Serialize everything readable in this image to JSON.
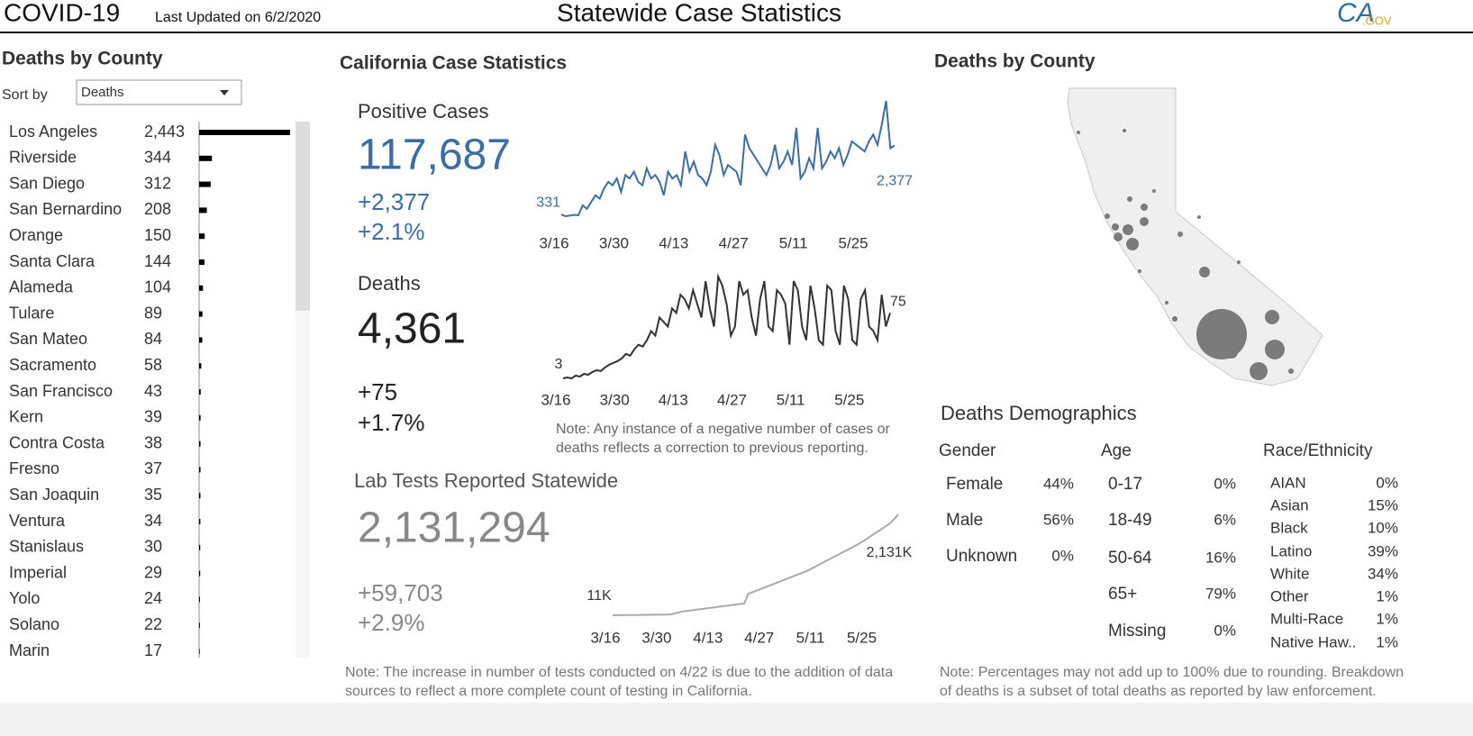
{
  "header": {
    "title": "COVID-19",
    "updated": "Last Updated on 6/2/2020",
    "page_title": "Statewide Case Statistics",
    "logo_a": "CA",
    "logo_b": ".GOV"
  },
  "county_panel": {
    "title": "Deaths by County",
    "sort_label": "Sort by",
    "sort_value": "Deaths",
    "chart_data": {
      "type": "bar",
      "categories": [
        "Los Angeles",
        "Riverside",
        "San Diego",
        "San Bernardino",
        "Orange",
        "Santa Clara",
        "Alameda",
        "Tulare",
        "San Mateo",
        "Sacramento",
        "San Francisco",
        "Kern",
        "Contra Costa",
        "Fresno",
        "San Joaquin",
        "Ventura",
        "Stanislaus",
        "Imperial",
        "Yolo",
        "Solano",
        "Marin"
      ],
      "values": [
        2443,
        344,
        312,
        208,
        150,
        144,
        104,
        89,
        84,
        58,
        43,
        39,
        38,
        37,
        35,
        34,
        30,
        29,
        24,
        22,
        17
      ],
      "value_labels": [
        "2,443",
        "344",
        "312",
        "208",
        "150",
        "144",
        "104",
        "89",
        "84",
        "58",
        "43",
        "39",
        "38",
        "37",
        "35",
        "34",
        "30",
        "29",
        "24",
        "22",
        "17"
      ],
      "color": "#000000"
    }
  },
  "stats": {
    "title": "California Case Statistics",
    "cases": {
      "label": "Positive Cases",
      "total": "117,687",
      "change": "+2,377",
      "pct": "+2.1%",
      "chart_data": {
        "type": "line",
        "color": "#3a6ea5",
        "categories": [
          "3/16",
          null,
          null,
          null,
          null,
          null,
          null,
          null,
          null,
          null,
          null,
          null,
          null,
          null,
          "3/30",
          null,
          null,
          null,
          null,
          null,
          null,
          null,
          null,
          null,
          null,
          null,
          null,
          null,
          "4/13",
          null,
          null,
          null,
          null,
          null,
          null,
          null,
          null,
          null,
          null,
          null,
          null,
          null,
          "4/27",
          null,
          null,
          null,
          null,
          null,
          null,
          null,
          null,
          null,
          null,
          null,
          null,
          null,
          "5/11",
          null,
          null,
          null,
          null,
          null,
          null,
          null,
          null,
          null,
          null,
          null,
          null,
          null,
          "5/25",
          null,
          null,
          null,
          null,
          null,
          null,
          null,
          null
        ],
        "values": [
          331,
          280,
          300,
          320,
          310,
          600,
          500,
          700,
          900,
          800,
          1100,
          1300,
          1200,
          1400,
          1000,
          1500,
          1400,
          1600,
          1300,
          1200,
          1700,
          1400,
          1500,
          1300,
          900,
          1600,
          1400,
          1500,
          1200,
          2200,
          1600,
          1900,
          1500,
          1400,
          1200,
          1600,
          2400,
          2100,
          1500,
          1800,
          1700,
          1600,
          1200,
          2700,
          2300,
          2100,
          1900,
          1700,
          1500,
          1800,
          2400,
          1700,
          1900,
          2200,
          1800,
          2900,
          1400,
          1600,
          2000,
          1700,
          2900,
          1700,
          1900,
          2200,
          2000,
          2300,
          1800,
          2100,
          2500,
          2400,
          2300,
          2200,
          2500,
          2700,
          2400,
          3000,
          3700,
          2300,
          2377
        ],
        "value_labels": [
          "331",
          null,
          null,
          null,
          null,
          null,
          null,
          null,
          null,
          null,
          null,
          null,
          null,
          null,
          null,
          null,
          null,
          null,
          null,
          null,
          null,
          null,
          null,
          null,
          null,
          null,
          null,
          null,
          null,
          null,
          null,
          null,
          null,
          null,
          null,
          null,
          null,
          null,
          null,
          null,
          null,
          null,
          null,
          null,
          null,
          null,
          null,
          null,
          null,
          null,
          null,
          null,
          null,
          null,
          null,
          null,
          null,
          null,
          null,
          null,
          null,
          null,
          null,
          null,
          null,
          null,
          null,
          null,
          null,
          null,
          null,
          null,
          null,
          null,
          null,
          null,
          null,
          null,
          "2,377"
        ]
      }
    },
    "deaths": {
      "label": "Deaths",
      "total": "4,361",
      "change": "+75",
      "pct": "+1.7%",
      "chart_data": {
        "type": "line",
        "color": "#333333",
        "categories": [
          "3/16",
          null,
          null,
          null,
          null,
          null,
          null,
          null,
          null,
          null,
          null,
          null,
          null,
          null,
          "3/30",
          null,
          null,
          null,
          null,
          null,
          null,
          null,
          null,
          null,
          null,
          null,
          null,
          null,
          "4/13",
          null,
          null,
          null,
          null,
          null,
          null,
          null,
          null,
          null,
          null,
          null,
          null,
          null,
          "4/27",
          null,
          null,
          null,
          null,
          null,
          null,
          null,
          null,
          null,
          null,
          null,
          null,
          null,
          "5/11",
          null,
          null,
          null,
          null,
          null,
          null,
          null,
          null,
          null,
          null,
          null,
          null,
          null,
          "5/25",
          null,
          null,
          null,
          null,
          null,
          null,
          null,
          null
        ],
        "values": [
          3,
          4,
          3,
          6,
          5,
          8,
          7,
          10,
          12,
          11,
          15,
          18,
          20,
          22,
          25,
          30,
          28,
          35,
          40,
          38,
          45,
          55,
          50,
          70,
          65,
          60,
          80,
          75,
          95,
          90,
          80,
          100,
          85,
          70,
          110,
          80,
          60,
          115,
          105,
          85,
          50,
          60,
          110,
          95,
          100,
          70,
          50,
          90,
          110,
          60,
          55,
          100,
          95,
          85,
          40,
          110,
          100,
          60,
          45,
          105,
          80,
          45,
          40,
          105,
          100,
          55,
          40,
          105,
          90,
          45,
          40,
          90,
          100,
          60,
          55,
          45,
          95,
          60,
          75
        ],
        "value_labels": [
          "3",
          null,
          null,
          null,
          null,
          null,
          null,
          null,
          null,
          null,
          null,
          null,
          null,
          null,
          null,
          null,
          null,
          null,
          null,
          null,
          null,
          null,
          null,
          null,
          null,
          null,
          null,
          null,
          null,
          null,
          null,
          null,
          null,
          null,
          null,
          null,
          null,
          null,
          null,
          null,
          null,
          null,
          null,
          null,
          null,
          null,
          null,
          null,
          null,
          null,
          null,
          null,
          null,
          null,
          null,
          null,
          null,
          null,
          null,
          null,
          null,
          null,
          null,
          null,
          null,
          null,
          null,
          null,
          null,
          null,
          null,
          null,
          null,
          null,
          null,
          null,
          null,
          null,
          "75"
        ]
      }
    },
    "note": "Note: Any instance of a negative number of cases or deaths reflects a correction to previous reporting.",
    "tests": {
      "label": "Lab Tests Reported Statewide",
      "total": "2,131,294",
      "change": "+59,703",
      "pct": "+2.9%",
      "chart_data": {
        "type": "line",
        "color": "#aaaaaa",
        "categories": [
          "3/16",
          null,
          null,
          null,
          null,
          null,
          null,
          null,
          null,
          null,
          null,
          null,
          null,
          null,
          "3/30",
          null,
          null,
          null,
          null,
          null,
          null,
          null,
          null,
          null,
          null,
          null,
          null,
          null,
          "4/13",
          null,
          null,
          null,
          null,
          null,
          null,
          null,
          null,
          null,
          null,
          null,
          null,
          null,
          "4/27",
          null,
          null,
          null,
          null,
          null,
          null,
          null,
          null,
          null,
          null,
          null,
          null,
          null,
          "5/11",
          null,
          null,
          null,
          null,
          null,
          null,
          null,
          null,
          null,
          null,
          null,
          null,
          null,
          "5/25",
          null,
          null,
          null,
          null,
          null,
          null,
          null,
          null
        ],
        "values": [
          11,
          12,
          13,
          14,
          15,
          16,
          17,
          18,
          19,
          20,
          21,
          22,
          23,
          24,
          25,
          26,
          30,
          50,
          70,
          90,
          100,
          110,
          120,
          130,
          140,
          150,
          160,
          170,
          180,
          190,
          200,
          210,
          220,
          230,
          240,
          250,
          260,
          460,
          490,
          520,
          550,
          580,
          610,
          640,
          670,
          700,
          730,
          760,
          790,
          820,
          850,
          880,
          910,
          940,
          980,
          1020,
          1060,
          1100,
          1140,
          1180,
          1220,
          1260,
          1300,
          1340,
          1380,
          1420,
          1460,
          1500,
          1550,
          1600,
          1650,
          1700,
          1750,
          1800,
          1850,
          1900,
          1960,
          2040,
          2131
        ],
        "value_labels": [
          "11K",
          null,
          null,
          null,
          null,
          null,
          null,
          null,
          null,
          null,
          null,
          null,
          null,
          null,
          null,
          null,
          null,
          null,
          null,
          null,
          null,
          null,
          null,
          null,
          null,
          null,
          null,
          null,
          null,
          null,
          null,
          null,
          null,
          null,
          null,
          null,
          null,
          null,
          null,
          null,
          null,
          null,
          null,
          null,
          null,
          null,
          null,
          null,
          null,
          null,
          null,
          null,
          null,
          null,
          null,
          null,
          null,
          null,
          null,
          null,
          null,
          null,
          null,
          null,
          null,
          null,
          null,
          null,
          null,
          null,
          null,
          null,
          null,
          null,
          null,
          null,
          null,
          null,
          "2,131K"
        ]
      }
    },
    "tests_note": "Note: The increase in number of tests conducted on 4/22 is due to the addition of data sources to reflect a more complete count of testing in California."
  },
  "right": {
    "map_title": "Deaths by County",
    "demo_title": "Deaths Demographics",
    "gender": {
      "title": "Gender",
      "rows": [
        [
          "Female",
          "44%"
        ],
        [
          "Male",
          "56%"
        ],
        [
          "Unknown",
          "0%"
        ]
      ]
    },
    "age": {
      "title": "Age",
      "rows": [
        [
          "0-17",
          "0%"
        ],
        [
          "18-49",
          "6%"
        ],
        [
          "50-64",
          "16%"
        ],
        [
          "65+",
          "79%"
        ],
        [
          "Missing",
          "0%"
        ]
      ]
    },
    "race": {
      "title": "Race/Ethnicity",
      "rows": [
        [
          "AIAN",
          "0%"
        ],
        [
          "Asian",
          "15%"
        ],
        [
          "Black",
          "10%"
        ],
        [
          "Latino",
          "39%"
        ],
        [
          "White",
          "34%"
        ],
        [
          "Other",
          "1%"
        ],
        [
          "Multi-Race",
          "1%"
        ],
        [
          "Native Haw..",
          "1%"
        ]
      ]
    },
    "note": "Note: Percentages may not add up to 100% due to rounding. Breakdown of deaths is a subset of total deaths as reported by law enforcement."
  }
}
